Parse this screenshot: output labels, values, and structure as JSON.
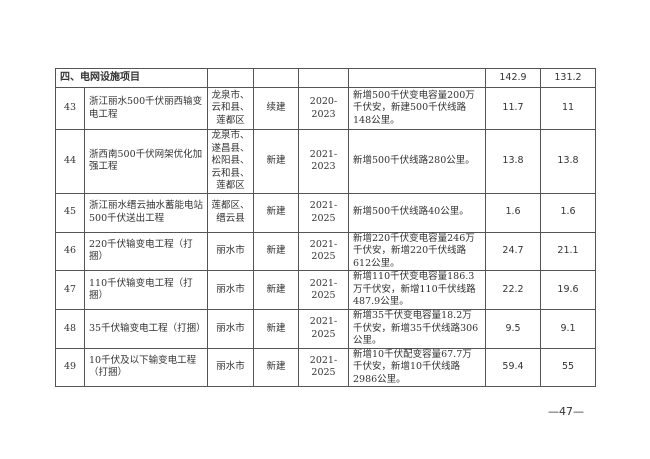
{
  "section": {
    "title": "四、电网设施项目",
    "total_investment": "142.9",
    "plan_investment": "131.2"
  },
  "rows": [
    {
      "no": "43",
      "name": "浙江丽水500千伏丽西输变电工程",
      "area": "龙泉市、云和县、莲都区",
      "type": "续建",
      "period": "2020-2023",
      "content": "新增500千伏变电容量200万千伏安，新建500千伏线路148公里。",
      "total": "11.7",
      "plan": "11"
    },
    {
      "no": "44",
      "name": "浙西南500千伏网架优化加强工程",
      "area": "龙泉市、遂昌县、松阳县、云和县、莲都区",
      "type": "新建",
      "period": "2021-2023",
      "content": "新增500千伏线路280公里。",
      "total": "13.8",
      "plan": "13.8"
    },
    {
      "no": "45",
      "name": "浙江丽水缙云抽水蓄能电站500千伏送出工程",
      "area": "莲都区、缙云县",
      "type": "新建",
      "period": "2021-2025",
      "content": "新增500千伏线路40公里。",
      "total": "1.6",
      "plan": "1.6"
    },
    {
      "no": "46",
      "name": "220千伏输变电工程（打捆）",
      "area": "丽水市",
      "type": "新建",
      "period": "2021-2025",
      "content": "新增220千伏变电容量246万千伏安，新增220千伏线路612公里。",
      "total": "24.7",
      "plan": "21.1"
    },
    {
      "no": "47",
      "name": "110千伏输变电工程（打捆）",
      "area": "丽水市",
      "type": "新建",
      "period": "2021-2025",
      "content": "新增110千伏变电容量186.3万千伏安，新增110千伏线路487.9公里。",
      "total": "22.2",
      "plan": "19.6"
    },
    {
      "no": "48",
      "name": "35千伏输变电工程（打捆）",
      "area": "丽水市",
      "type": "新建",
      "period": "2021-2025",
      "content": "新增35千伏变电容量18.2万千伏安，新增35千伏线路306公里。",
      "total": "9.5",
      "plan": "9.1"
    },
    {
      "no": "49",
      "name": "10千伏及以下输变电工程（打捆）",
      "area": "丽水市",
      "type": "新建",
      "period": "2021-2025",
      "content": "新增10千伏配变容量67.7万千伏安，新增10千伏线路2986公里。",
      "total": "59.4",
      "plan": "55"
    }
  ],
  "page_number": "—47—"
}
